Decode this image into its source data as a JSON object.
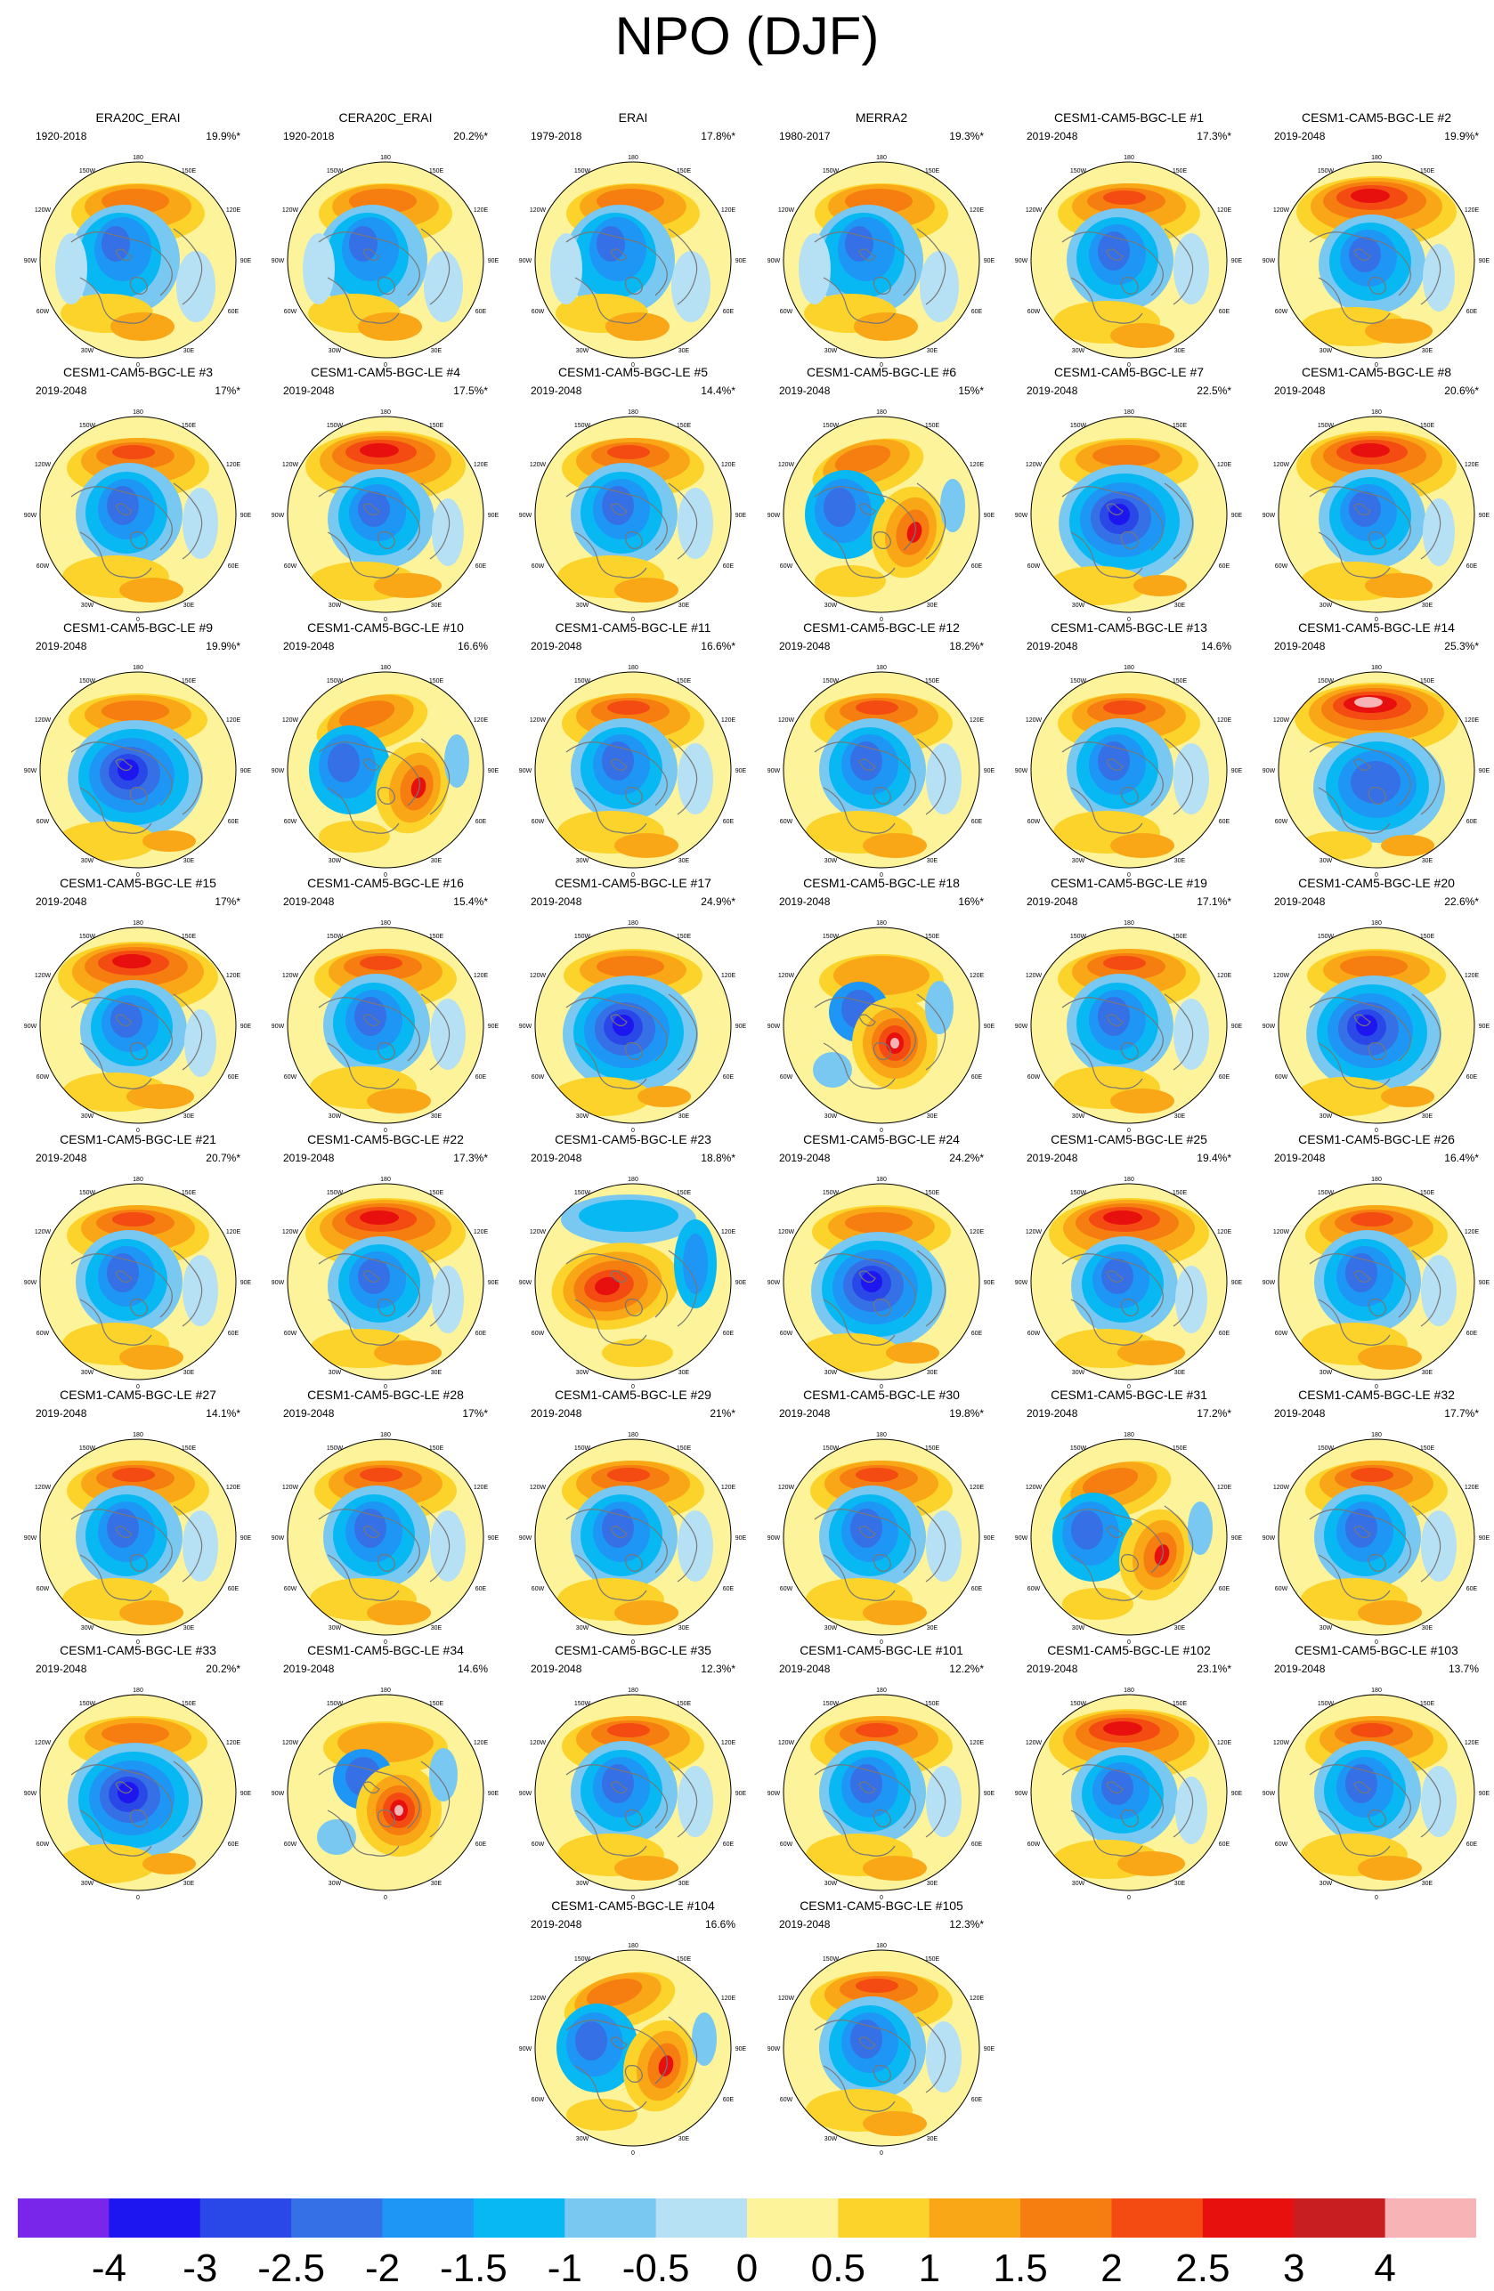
{
  "title": "NPO (DJF)",
  "map_labels": {
    "lon_top": "180",
    "lon_150w": "150W",
    "lon_150e": "150E",
    "lon_120w": "120W",
    "lon_120e": "120E",
    "lon_90w": "90W",
    "lon_90e": "90E",
    "lon_60w": "60W",
    "lon_60e": "60E",
    "lon_30w": "30W",
    "lon_30e": "30E",
    "lon_bottom": "0"
  },
  "panels": [
    {
      "title": "ERA20C_ERAI",
      "years": "1920-2018",
      "pct": "19.9%*",
      "pattern": "obs"
    },
    {
      "title": "CERA20C_ERAI",
      "years": "1920-2018",
      "pct": "20.2%*",
      "pattern": "obs"
    },
    {
      "title": "ERAI",
      "years": "1979-2018",
      "pct": "17.8%*",
      "pattern": "obs"
    },
    {
      "title": "MERRA2",
      "years": "1980-2017",
      "pct": "19.3%*",
      "pattern": "obs"
    },
    {
      "title": "CESM1-CAM5-BGC-LE #1",
      "years": "2019-2048",
      "pct": "17.3%*",
      "pattern": "std"
    },
    {
      "title": "CESM1-CAM5-BGC-LE #2",
      "years": "2019-2048",
      "pct": "19.9%*",
      "pattern": "strong"
    },
    {
      "title": "CESM1-CAM5-BGC-LE #3",
      "years": "2019-2048",
      "pct": "17%*",
      "pattern": "std"
    },
    {
      "title": "CESM1-CAM5-BGC-LE #4",
      "years": "2019-2048",
      "pct": "17.5%*",
      "pattern": "strong"
    },
    {
      "title": "CESM1-CAM5-BGC-LE #5",
      "years": "2019-2048",
      "pct": "14.4%*",
      "pattern": "std"
    },
    {
      "title": "CESM1-CAM5-BGC-LE #6",
      "years": "2019-2048",
      "pct": "15%*",
      "pattern": "dipole"
    },
    {
      "title": "CESM1-CAM5-BGC-LE #7",
      "years": "2019-2048",
      "pct": "22.5%*",
      "pattern": "deep"
    },
    {
      "title": "CESM1-CAM5-BGC-LE #8",
      "years": "2019-2048",
      "pct": "20.6%*",
      "pattern": "strong"
    },
    {
      "title": "CESM1-CAM5-BGC-LE #9",
      "years": "2019-2048",
      "pct": "19.9%*",
      "pattern": "deep"
    },
    {
      "title": "CESM1-CAM5-BGC-LE #10",
      "years": "2019-2048",
      "pct": "16.6%",
      "pattern": "dipole"
    },
    {
      "title": "CESM1-CAM5-BGC-LE #11",
      "years": "2019-2048",
      "pct": "16.6%*",
      "pattern": "std"
    },
    {
      "title": "CESM1-CAM5-BGC-LE #12",
      "years": "2019-2048",
      "pct": "18.2%*",
      "pattern": "std"
    },
    {
      "title": "CESM1-CAM5-BGC-LE #13",
      "years": "2019-2048",
      "pct": "14.6%",
      "pattern": "std"
    },
    {
      "title": "CESM1-CAM5-BGC-LE #14",
      "years": "2019-2048",
      "pct": "25.3%*",
      "pattern": "peak"
    },
    {
      "title": "CESM1-CAM5-BGC-LE #15",
      "years": "2019-2048",
      "pct": "17%*",
      "pattern": "strong"
    },
    {
      "title": "CESM1-CAM5-BGC-LE #16",
      "years": "2019-2048",
      "pct": "15.4%*",
      "pattern": "std"
    },
    {
      "title": "CESM1-CAM5-BGC-LE #17",
      "years": "2019-2048",
      "pct": "24.9%*",
      "pattern": "deep"
    },
    {
      "title": "CESM1-CAM5-BGC-LE #18",
      "years": "2019-2048",
      "pct": "16%*",
      "pattern": "center"
    },
    {
      "title": "CESM1-CAM5-BGC-LE #19",
      "years": "2019-2048",
      "pct": "17.1%*",
      "pattern": "std"
    },
    {
      "title": "CESM1-CAM5-BGC-LE #20",
      "years": "2019-2048",
      "pct": "22.6%*",
      "pattern": "deep"
    },
    {
      "title": "CESM1-CAM5-BGC-LE #21",
      "years": "2019-2048",
      "pct": "20.7%*",
      "pattern": "std"
    },
    {
      "title": "CESM1-CAM5-BGC-LE #22",
      "years": "2019-2048",
      "pct": "17.3%*",
      "pattern": "strong"
    },
    {
      "title": "CESM1-CAM5-BGC-LE #23",
      "years": "2019-2048",
      "pct": "18.8%*",
      "pattern": "inverted"
    },
    {
      "title": "CESM1-CAM5-BGC-LE #24",
      "years": "2019-2048",
      "pct": "24.2%*",
      "pattern": "deep"
    },
    {
      "title": "CESM1-CAM5-BGC-LE #25",
      "years": "2019-2048",
      "pct": "19.4%*",
      "pattern": "strong"
    },
    {
      "title": "CESM1-CAM5-BGC-LE #26",
      "years": "2019-2048",
      "pct": "16.4%*",
      "pattern": "std"
    },
    {
      "title": "CESM1-CAM5-BGC-LE #27",
      "years": "2019-2048",
      "pct": "14.1%*",
      "pattern": "std"
    },
    {
      "title": "CESM1-CAM5-BGC-LE #28",
      "years": "2019-2048",
      "pct": "17%*",
      "pattern": "std"
    },
    {
      "title": "CESM1-CAM5-BGC-LE #29",
      "years": "2019-2048",
      "pct": "21%*",
      "pattern": "std"
    },
    {
      "title": "CESM1-CAM5-BGC-LE #30",
      "years": "2019-2048",
      "pct": "19.8%*",
      "pattern": "std"
    },
    {
      "title": "CESM1-CAM5-BGC-LE #31",
      "years": "2019-2048",
      "pct": "17.2%*",
      "pattern": "dipole"
    },
    {
      "title": "CESM1-CAM5-BGC-LE #32",
      "years": "2019-2048",
      "pct": "17.7%*",
      "pattern": "std"
    },
    {
      "title": "CESM1-CAM5-BGC-LE #33",
      "years": "2019-2048",
      "pct": "20.2%*",
      "pattern": "deep"
    },
    {
      "title": "CESM1-CAM5-BGC-LE #34",
      "years": "2019-2048",
      "pct": "14.6%",
      "pattern": "center"
    },
    {
      "title": "CESM1-CAM5-BGC-LE #35",
      "years": "2019-2048",
      "pct": "12.3%*",
      "pattern": "std"
    },
    {
      "title": "CESM1-CAM5-BGC-LE #101",
      "years": "2019-2048",
      "pct": "12.2%*",
      "pattern": "std"
    },
    {
      "title": "CESM1-CAM5-BGC-LE #102",
      "years": "2019-2048",
      "pct": "23.1%*",
      "pattern": "strong"
    },
    {
      "title": "CESM1-CAM5-BGC-LE #103",
      "years": "2019-2048",
      "pct": "13.7%",
      "pattern": "std"
    },
    {
      "title": "CESM1-CAM5-BGC-LE #104",
      "years": "2019-2048",
      "pct": "16.6%",
      "pattern": "dipole"
    },
    {
      "title": "CESM1-CAM5-BGC-LE #105",
      "years": "2019-2048",
      "pct": "12.3%*",
      "pattern": "std"
    }
  ],
  "colorbar": {
    "colors": [
      "#7a26ea",
      "#1e16f0",
      "#2a47e8",
      "#3570e6",
      "#1e96f5",
      "#08b8f2",
      "#78c8f2",
      "#b6e0f4",
      "#fdf39a",
      "#fbd32a",
      "#f9a716",
      "#f67d0f",
      "#f34b12",
      "#e80f0f",
      "#c81e22",
      "#f8b3b6"
    ],
    "labels": [
      "-4",
      "-3",
      "-2.5",
      "-2",
      "-1.5",
      "-1",
      "-0.5",
      "0",
      "0.5",
      "1",
      "1.5",
      "2",
      "2.5",
      "3",
      "4"
    ]
  }
}
